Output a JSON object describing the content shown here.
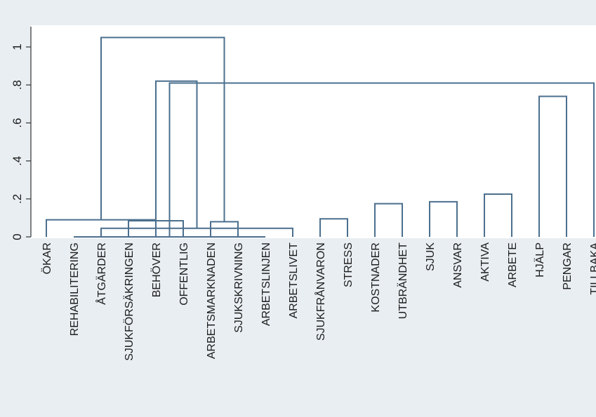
{
  "chart_data": {
    "type": "dendrogram",
    "orientation": "vertical",
    "title": "",
    "xlabel": "",
    "ylabel": "",
    "ylim": [
      0,
      1.1
    ],
    "yticks": [
      0,
      0.2,
      0.4,
      0.6,
      0.8,
      1
    ],
    "ytick_labels": [
      "0",
      ".2",
      ".4",
      ".6",
      ".8",
      "1"
    ],
    "grid": false,
    "leaves": [
      "ÖKAR",
      "REHABILITERING",
      "ÅTGÄRDER",
      "SJUKFÖRSÄKRINGEN",
      "BEHÖVER",
      "OFFENTLIG",
      "ARBETSMARKNADEN",
      "SJUKSKRIVNING",
      "ARBETSLINJEN",
      "ARBETSLIVET",
      "SJUKFRÅNVARON",
      "STRESS",
      "KOSTNADER",
      "UTBRÄNDHET",
      "SJUK",
      "ANSVAR",
      "AKTIVA",
      "ARBETE",
      "HJÄLP",
      "PENGAR",
      "TILLBAKA"
    ],
    "merges": [
      {
        "a": 1,
        "b": 8,
        "height": 0.0
      },
      {
        "a": 2,
        "b": 9,
        "height": 0.045
      },
      {
        "a": 3,
        "b": 5,
        "height": 0.085
      },
      {
        "a": 6,
        "b": 7,
        "height": 0.08
      },
      {
        "a": 0,
        "b": 4,
        "height": 0.09
      },
      {
        "a": 10,
        "b": 11,
        "height": 0.095
      },
      {
        "a": 12,
        "b": 13,
        "height": 0.175
      },
      {
        "a": 14,
        "b": 15,
        "height": 0.185
      },
      {
        "a": 16,
        "b": 17,
        "height": 0.225
      },
      {
        "a": 18,
        "b": 19,
        "height": 0.74
      },
      {
        "a": 20,
        "b": 21,
        "height": 0.81
      },
      {
        "a": 22,
        "b": 23,
        "height": 0.82
      },
      {
        "a": 24,
        "b": 25,
        "height": 1.05
      }
    ]
  },
  "colors": {
    "branch": "#4b6f8e",
    "frame_background": "#e9eef2",
    "plot_background": "#ffffff",
    "text": "#1c1c1c"
  }
}
